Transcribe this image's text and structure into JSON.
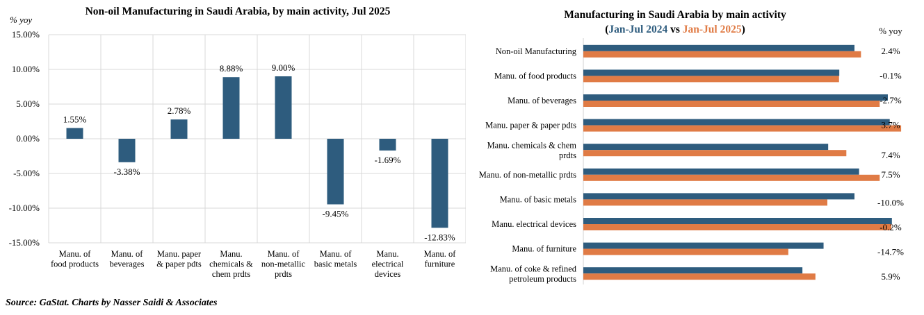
{
  "source": "Source: GaStat. Charts by Nasser Saidi & Associates",
  "chart_data": [
    {
      "type": "bar",
      "title": "Non-oil Manufacturing in Saudi Arabia, by main activity, Jul 2025",
      "ylabel": "% yoy",
      "ylim": [
        -15,
        15
      ],
      "yticks": [
        "15.00%",
        "10.00%",
        "5.00%",
        "0.00%",
        "-5.00%",
        "-10.00%",
        "-15.00%"
      ],
      "categories": [
        [
          "Manu. of",
          "food products"
        ],
        [
          "Manu. of",
          "beverages"
        ],
        [
          "Manu. paper",
          "& paper pdts"
        ],
        [
          "Manu.",
          "chemicals &",
          "chem prdts"
        ],
        [
          "Manu. of",
          "non-metallic",
          "prdts"
        ],
        [
          "Manu. of",
          "basic metals"
        ],
        [
          "Manu.",
          "electrical",
          "devices"
        ],
        [
          "Manu. of",
          "furniture"
        ]
      ],
      "values": [
        1.55,
        -3.38,
        2.78,
        8.88,
        9.0,
        -9.45,
        -1.69,
        -12.83
      ],
      "data_labels": [
        "1.55%",
        "-3.38%",
        "2.78%",
        "8.88%",
        "9.00%",
        "-9.45%",
        "-1.69%",
        "-12.83%"
      ],
      "grid": true,
      "color": "#2e5c7e"
    },
    {
      "type": "bar",
      "orientation": "horizontal",
      "title": "Manufacturing in Saudi Arabia by main activity",
      "subtitle_parts": [
        "(",
        "Jan-Jul 2024",
        " vs ",
        "Jan-Jul 2025",
        ")"
      ],
      "value_header": "% yoy",
      "categories": [
        [
          "Non-oil Manufacturing"
        ],
        [
          "Manu. of food products"
        ],
        [
          "Manu. of beverages"
        ],
        [
          "Manu. paper & paper pdts"
        ],
        [
          "Manu. chemicals & chem",
          "prdts"
        ],
        [
          "Manu. of non-metallic prdts"
        ],
        [
          "Manu. of basic metals"
        ],
        [
          "Manu. electrical devices"
        ],
        [
          "Manu. of furniture"
        ],
        [
          "Manu. of coke & refined",
          "petroleum products"
        ]
      ],
      "series": [
        {
          "name": "Jan-Jul 2024",
          "color": "#2e5c7e",
          "values": [
            100.0,
            94.4,
            112.3,
            113.0,
            90.3,
            101.7,
            100.0,
            113.8,
            88.6,
            80.8
          ]
        },
        {
          "name": "Jan-Jul 2025",
          "color": "#e07b45",
          "values": [
            102.4,
            94.3,
            109.3,
            117.2,
            97.0,
            109.3,
            90.0,
            113.6,
            75.6,
            85.6
          ]
        }
      ],
      "yoy_labels": [
        "2.4%",
        "-0.1%",
        "-2.7%",
        "3.7%",
        "7.4%",
        "7.5%",
        "-10.0%",
        "-0.2%",
        "-14.7%",
        "5.9%"
      ],
      "grid": false,
      "legend": "none"
    }
  ]
}
